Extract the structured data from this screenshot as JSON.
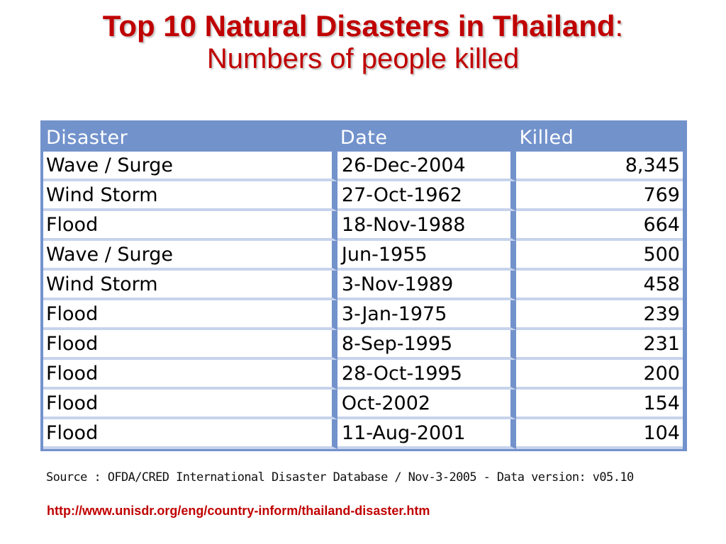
{
  "title": {
    "main": "Top 10 Natural Disasters in Thailand",
    "separator": ":",
    "subtitle": "Numbers of people killed"
  },
  "table": {
    "headers": [
      "Disaster",
      "Date",
      "Killed"
    ],
    "rows": [
      {
        "disaster": "Wave / Surge",
        "date": "26-Dec-2004",
        "killed": "8,345"
      },
      {
        "disaster": "Wind Storm",
        "date": "27-Oct-1962",
        "killed": "769"
      },
      {
        "disaster": "Flood",
        "date": "18-Nov-1988",
        "killed": "664"
      },
      {
        "disaster": "Wave / Surge",
        "date": "Jun-1955",
        "killed": "500"
      },
      {
        "disaster": "Wind Storm",
        "date": "3-Nov-1989",
        "killed": "458"
      },
      {
        "disaster": "Flood",
        "date": "3-Jan-1975",
        "killed": "239"
      },
      {
        "disaster": "Flood",
        "date": "8-Sep-1995",
        "killed": "231"
      },
      {
        "disaster": "Flood",
        "date": "28-Oct-1995",
        "killed": "200"
      },
      {
        "disaster": "Flood",
        "date": "Oct-2002",
        "killed": "154"
      },
      {
        "disaster": "Flood",
        "date": "11-Aug-2001",
        "killed": "104"
      }
    ]
  },
  "source": "Source : OFDA/CRED International Disaster Database / Nov-3-2005 - Data version: v05.10",
  "url": "http://www.unisdr.org/eng/country-inform/thailand-disaster.htm",
  "colors": {
    "title": "#c00000",
    "table_header": "#7292cc",
    "url": "#c00000"
  }
}
